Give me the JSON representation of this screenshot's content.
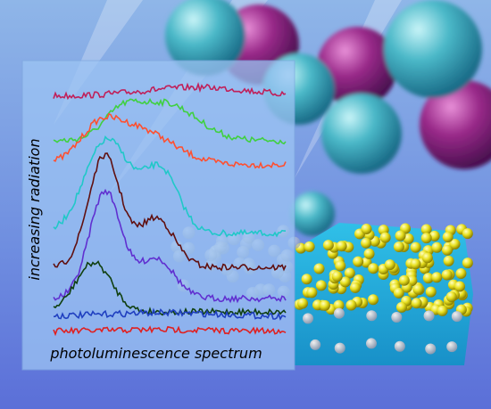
{
  "labels": {
    "y_axis": "increasing radiation",
    "x_axis": "photoluminescence spectrum"
  }
}
